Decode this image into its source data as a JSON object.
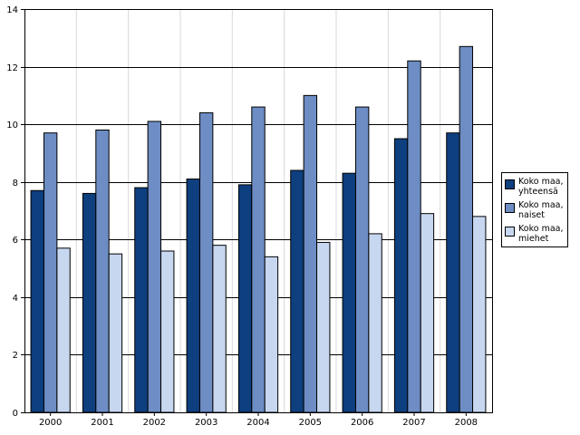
{
  "chart_data": {
    "type": "bar",
    "categories": [
      "2000",
      "2001",
      "2002",
      "2003",
      "2004",
      "2005",
      "2006",
      "2007",
      "2008"
    ],
    "series": [
      {
        "name": "Koko maa,\nyhteensä",
        "color": "#0e3f7e",
        "values": [
          7.7,
          7.6,
          7.8,
          8.1,
          7.9,
          8.4,
          8.3,
          9.5,
          9.7
        ]
      },
      {
        "name": "Koko maa,\nnaiset",
        "color": "#6d8dc4",
        "values": [
          9.7,
          9.8,
          10.1,
          10.4,
          10.6,
          11.0,
          10.6,
          12.2,
          12.7
        ]
      },
      {
        "name": "Koko maa,\nmiehet",
        "color": "#c7d7f0",
        "values": [
          5.7,
          5.5,
          5.6,
          5.8,
          5.4,
          5.9,
          6.2,
          6.9,
          6.8
        ]
      }
    ],
    "yticks": [
      0,
      2,
      4,
      6,
      8,
      10,
      12,
      14
    ],
    "ylim": [
      0,
      14
    ],
    "title": "",
    "xlabel": "",
    "ylabel": "",
    "grid": "horizontal",
    "legend_position": "right"
  }
}
